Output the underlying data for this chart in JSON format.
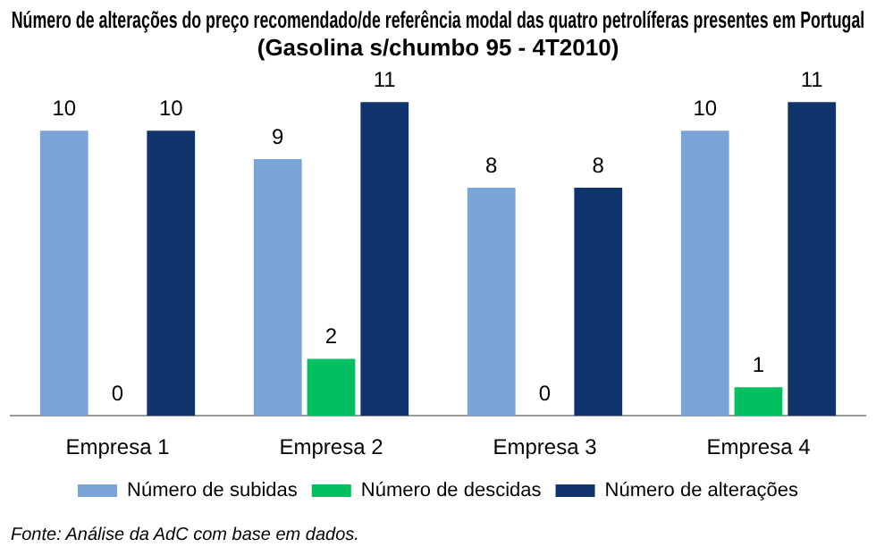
{
  "chart_data": {
    "type": "bar",
    "title": "Número de alterações do preço recomendado/de referência modal das quatro petrolíferas presentes em Portugal\n(Gasolina s/chumbo 95 - 4T2010)",
    "categories": [
      "Empresa 1",
      "Empresa 2",
      "Empresa 3",
      "Empresa 4"
    ],
    "series": [
      {
        "name": "Número de subidas",
        "color": "#7aa3d8",
        "values": [
          10,
          9,
          8,
          10
        ]
      },
      {
        "name": "Número de descidas",
        "color": "#00c060",
        "values": [
          0,
          2,
          0,
          1
        ]
      },
      {
        "name": "Número de alterações",
        "color": "#10336b",
        "values": [
          10,
          11,
          8,
          11
        ]
      }
    ],
    "data_labels": true,
    "legend": "bottom",
    "grid": false,
    "annotations": [
      "Fonte: Análise da AdC com base em dados."
    ]
  }
}
